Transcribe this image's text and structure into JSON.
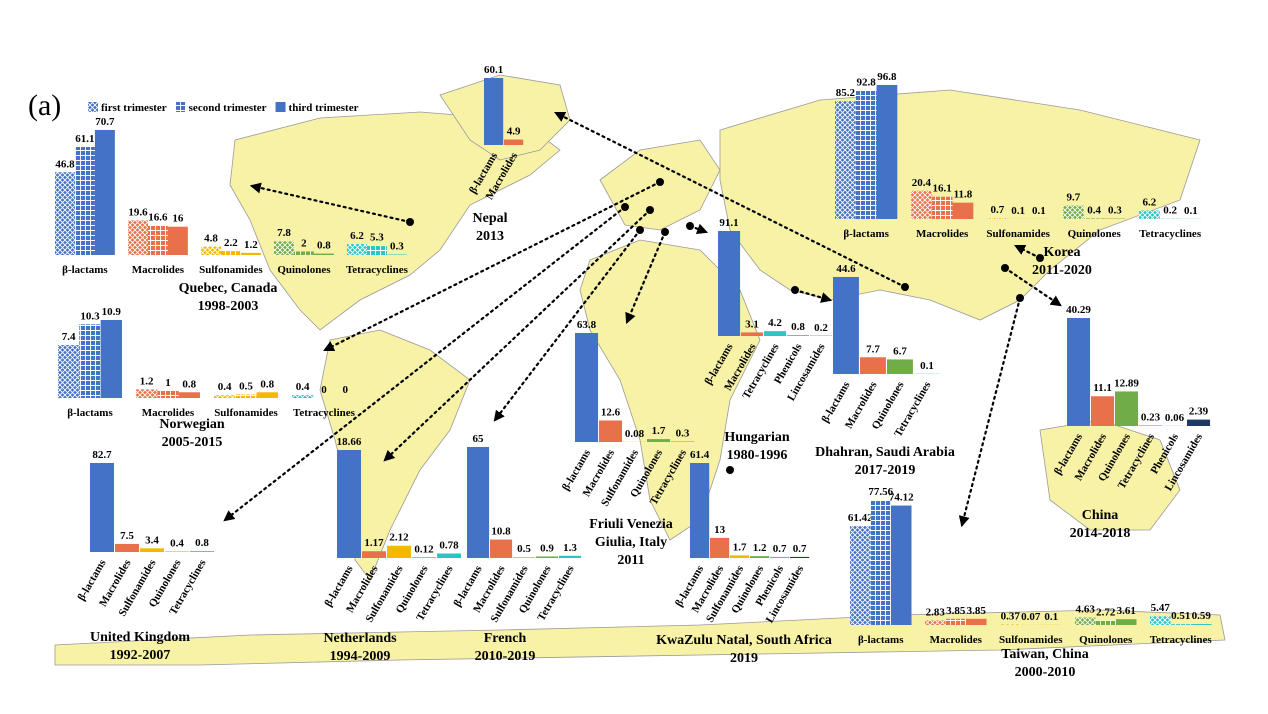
{
  "panel_label": "(a)",
  "chart_data": [
    {
      "type": "bar",
      "title": [
        "Quebec, Canada",
        "1998-2003"
      ],
      "categories": [
        "β-lactams",
        "Macrolides",
        "Sulfonamides",
        "Quinolones",
        "Tetracyclines"
      ],
      "colors": [
        "#4472c4",
        "#e8704a",
        "#f5b800",
        "#70ad47",
        "#2ec4c4"
      ],
      "series": [
        {
          "name": "first trimester",
          "pattern": "crosshatch",
          "values": [
            46.8,
            19.6,
            4.8,
            7.8,
            6.2
          ]
        },
        {
          "name": "second trimester",
          "pattern": "grid",
          "values": [
            61.1,
            16.6,
            2.2,
            2,
            5.3
          ]
        },
        {
          "name": "third trimester",
          "pattern": "solid",
          "values": [
            70.7,
            16,
            1.2,
            0.8,
            0.3
          ]
        }
      ]
    },
    {
      "type": "bar",
      "title": [
        "Nepal",
        "2013"
      ],
      "categories": [
        "β-lactams",
        "Macrolides"
      ],
      "colors": [
        "#4472c4",
        "#e8704a"
      ],
      "values": [
        60.1,
        4.9
      ]
    },
    {
      "type": "bar",
      "title": [
        "Korea",
        "2011-2020"
      ],
      "categories": [
        "β-lactams",
        "Macrolides",
        "Sulfonamides",
        "Quinolones",
        "Tetracyclines"
      ],
      "colors": [
        "#4472c4",
        "#e8704a",
        "#f5b800",
        "#70ad47",
        "#2ec4c4"
      ],
      "series": [
        {
          "pattern": "crosshatch",
          "values": [
            85.2,
            20.4,
            0.7,
            9.7,
            6.2
          ]
        },
        {
          "pattern": "grid",
          "values": [
            92.8,
            16.1,
            0.1,
            0.4,
            0.2
          ]
        },
        {
          "pattern": "solid",
          "values": [
            96.8,
            11.8,
            0.1,
            0.3,
            0.1
          ]
        }
      ]
    },
    {
      "type": "bar",
      "title": [
        "Norwegian",
        "2005-2015"
      ],
      "categories": [
        "β-lactams",
        "Macrolides",
        "Sulfonamides",
        "Tetracyclines"
      ],
      "colors": [
        "#4472c4",
        "#e8704a",
        "#f5b800",
        "#2ec4c4"
      ],
      "series": [
        {
          "pattern": "crosshatch",
          "values": [
            7.4,
            1.2,
            0.4,
            0.4
          ]
        },
        {
          "pattern": "grid",
          "values": [
            10.3,
            1,
            0.5,
            0
          ]
        },
        {
          "pattern": "solid",
          "values": [
            10.9,
            0.8,
            0.8,
            0
          ]
        }
      ]
    },
    {
      "type": "bar",
      "title": [
        "Hungarian",
        "1980-1996"
      ],
      "categories": [
        "β-lactams",
        "Macrolides",
        "Tetracyclines",
        "Phenicols",
        "Lincosamides"
      ],
      "colors": [
        "#4472c4",
        "#e8704a",
        "#2ec4c4",
        "#e87aa8",
        "#1f3864"
      ],
      "values": [
        91.1,
        3.1,
        4.2,
        0.8,
        0.2
      ]
    },
    {
      "type": "bar",
      "title": [
        "Dhahran, Saudi Arabia",
        "2017-2019"
      ],
      "categories": [
        "β-lactams",
        "Macrolides",
        "Quinolones",
        "Tetracyclines"
      ],
      "colors": [
        "#4472c4",
        "#e8704a",
        "#70ad47",
        "#2ec4c4"
      ],
      "values": [
        44.6,
        7.7,
        6.7,
        0.1
      ]
    },
    {
      "type": "bar",
      "title": [
        "China",
        "2014-2018"
      ],
      "categories": [
        "β-lactams",
        "Macrolides",
        "Quinolones",
        "Tetracyclines",
        "Phenicols",
        "Lincosamides"
      ],
      "colors": [
        "#4472c4",
        "#e8704a",
        "#70ad47",
        "#2ec4c4",
        "#e87aa8",
        "#1f3864"
      ],
      "values": [
        40.29,
        11.1,
        12.89,
        0.23,
        0.06,
        2.39
      ]
    },
    {
      "type": "bar",
      "title": [
        "Friuli Venezia",
        "Giulia, Italy",
        "2011"
      ],
      "categories": [
        "β-lactams",
        "Macrolides",
        "Sulfonamides",
        "Quinolones",
        "Tetracyclines"
      ],
      "colors": [
        "#4472c4",
        "#e8704a",
        "#f5b800",
        "#70ad47",
        "#2ec4c4"
      ],
      "values": [
        63.8,
        12.6,
        0.08,
        1.7,
        0.3
      ]
    },
    {
      "type": "bar",
      "title": [
        "United Kingdom",
        "1992-2007"
      ],
      "categories": [
        "β-lactams",
        "Macrolides",
        "Sulfonamides",
        "Quinolones",
        "Tetracyclines"
      ],
      "colors": [
        "#4472c4",
        "#e8704a",
        "#f5b800",
        "#70ad47",
        "#2ec4c4"
      ],
      "values": [
        82.7,
        7.5,
        3.4,
        0.4,
        0.8
      ]
    },
    {
      "type": "bar",
      "title": [
        "Netherlands",
        "1994-2009"
      ],
      "categories": [
        "β-lactams",
        "Macrolides",
        "Sulfonamides",
        "Quinolones",
        "Tetracyclines"
      ],
      "colors": [
        "#4472c4",
        "#e8704a",
        "#f5b800",
        "#70ad47",
        "#2ec4c4"
      ],
      "values": [
        18.66,
        1.17,
        2.12,
        0.12,
        0.78
      ]
    },
    {
      "type": "bar",
      "title": [
        "French",
        "2010-2019"
      ],
      "categories": [
        "β-lactams",
        "Macrolides",
        "Sulfonamides",
        "Quinolones",
        "Tetracyclines"
      ],
      "colors": [
        "#4472c4",
        "#e8704a",
        "#f5b800",
        "#70ad47",
        "#2ec4c4"
      ],
      "values": [
        65,
        10.8,
        0.5,
        0.9,
        1.3
      ]
    },
    {
      "type": "bar",
      "title": [
        "KwaZulu Natal, South Africa",
        "2019"
      ],
      "categories": [
        "β-lactams",
        "Macrolides",
        "Sulfonamides",
        "Quinolones",
        "Phenicols",
        "Lincosamides"
      ],
      "colors": [
        "#4472c4",
        "#e8704a",
        "#f5b800",
        "#70ad47",
        "#e87aa8",
        "#1f3864"
      ],
      "values": [
        61.4,
        13,
        1.7,
        1.2,
        0.7,
        0.7
      ]
    },
    {
      "type": "bar",
      "title": [
        "Taiwan, China",
        "2000-2010"
      ],
      "categories": [
        "β-lactams",
        "Macrolides",
        "Sulfonamides",
        "Quinolones",
        "Tetracyclines"
      ],
      "colors": [
        "#4472c4",
        "#e8704a",
        "#f5b800",
        "#70ad47",
        "#2ec4c4"
      ],
      "series": [
        {
          "pattern": "crosshatch",
          "values": [
            61.42,
            2.83,
            0.37,
            4.63,
            5.47
          ]
        },
        {
          "pattern": "grid",
          "values": [
            77.56,
            3.85,
            0.07,
            2.72,
            0.51
          ]
        },
        {
          "pattern": "solid",
          "values": [
            74.12,
            3.85,
            0.1,
            3.61,
            0.59
          ]
        }
      ]
    }
  ]
}
